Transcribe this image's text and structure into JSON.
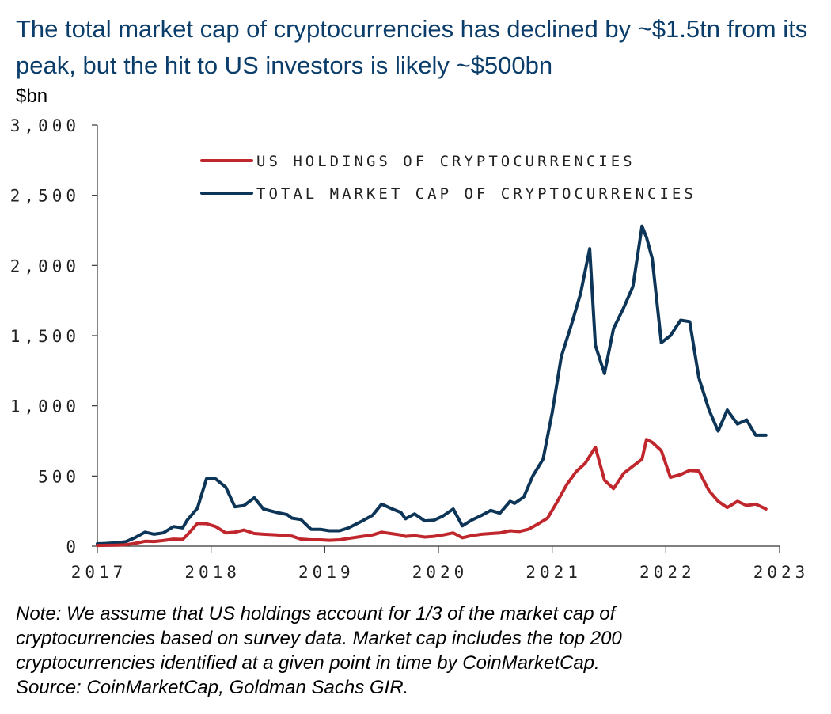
{
  "title": "The total market cap of cryptocurrencies has declined by ~$1.5tn from its peak, but the hit to US investors is likely ~$500bn",
  "unit_label": "$bn",
  "note_lines": [
    "Note: We assume that US holdings account for 1/3 of the market cap of",
    "cryptocurrencies based on survey data. Market cap includes the top 200",
    "cryptocurrencies identified at a given point in time by CoinMarketCap.",
    "Source: CoinMarketCap, Goldman Sachs GIR."
  ],
  "colors": {
    "title": "#0b3d6b",
    "total": "#0d3557",
    "us": "#c0272d",
    "axis": "#333333"
  },
  "chart_data": {
    "type": "line",
    "title": "The total market cap of cryptocurrencies has declined by ~$1.5tn from its peak, but the hit to US investors is likely ~$500bn",
    "ylabel": "$bn",
    "xlabel": "",
    "xlim": [
      2017,
      2023
    ],
    "ylim": [
      0,
      3000
    ],
    "yticks": [
      0,
      500,
      1000,
      1500,
      2000,
      2500,
      3000
    ],
    "ytick_labels": [
      "0",
      "500",
      "1,000",
      "1,500",
      "2,000",
      "2,500",
      "3,000"
    ],
    "xticks": [
      2017,
      2018,
      2019,
      2020,
      2021,
      2022,
      2023
    ],
    "xtick_labels": [
      "2017",
      "2018",
      "2019",
      "2020",
      "2021",
      "2022",
      "2023"
    ],
    "grid": false,
    "legend_position": "top-center",
    "series": [
      {
        "name": "US HOLDINGS OF CRYPTOCURRENCIES",
        "color": "#c0272d",
        "x": [
          2017.0,
          2017.17,
          2017.25,
          2017.33,
          2017.42,
          2017.5,
          2017.58,
          2017.67,
          2017.75,
          2017.79,
          2017.88,
          2017.96,
          2018.04,
          2018.13,
          2018.21,
          2018.29,
          2018.38,
          2018.46,
          2018.58,
          2018.71,
          2018.79,
          2018.88,
          2018.96,
          2019.04,
          2019.13,
          2019.21,
          2019.33,
          2019.42,
          2019.5,
          2019.58,
          2019.67,
          2019.71,
          2019.79,
          2019.88,
          2019.96,
          2020.04,
          2020.13,
          2020.21,
          2020.29,
          2020.38,
          2020.46,
          2020.54,
          2020.63,
          2020.71,
          2020.79,
          2020.88,
          2020.96,
          2021.04,
          2021.13,
          2021.21,
          2021.29,
          2021.38,
          2021.46,
          2021.54,
          2021.63,
          2021.71,
          2021.79,
          2021.83,
          2021.88,
          2021.96,
          2022.04,
          2022.13,
          2022.21,
          2022.29,
          2022.38,
          2022.46,
          2022.54,
          2022.63,
          2022.71,
          2022.79,
          2022.88
        ],
        "values": [
          5,
          7,
          10,
          20,
          35,
          33,
          40,
          50,
          48,
          80,
          162,
          160,
          140,
          95,
          100,
          115,
          90,
          85,
          80,
          72,
          50,
          45,
          45,
          42,
          45,
          55,
          70,
          80,
          100,
          90,
          80,
          70,
          75,
          65,
          70,
          80,
          95,
          60,
          75,
          85,
          90,
          95,
          110,
          105,
          120,
          160,
          200,
          310,
          440,
          530,
          590,
          705,
          470,
          410,
          520,
          570,
          620,
          760,
          740,
          680,
          490,
          510,
          540,
          535,
          395,
          320,
          275,
          320,
          290,
          300,
          265
        ]
      },
      {
        "name": "TOTAL MARKET CAP OF CRYPTOCURRENCIES",
        "color": "#0d3557",
        "x": [
          2017.0,
          2017.08,
          2017.17,
          2017.25,
          2017.33,
          2017.42,
          2017.5,
          2017.58,
          2017.67,
          2017.75,
          2017.79,
          2017.88,
          2017.96,
          2018.04,
          2018.13,
          2018.21,
          2018.29,
          2018.38,
          2018.46,
          2018.58,
          2018.67,
          2018.71,
          2018.79,
          2018.88,
          2018.96,
          2019.04,
          2019.13,
          2019.21,
          2019.33,
          2019.42,
          2019.5,
          2019.58,
          2019.67,
          2019.71,
          2019.79,
          2019.88,
          2019.96,
          2020.04,
          2020.13,
          2020.21,
          2020.29,
          2020.38,
          2020.46,
          2020.54,
          2020.63,
          2020.67,
          2020.75,
          2020.83,
          2020.92,
          2021.0,
          2021.08,
          2021.17,
          2021.25,
          2021.33,
          2021.38,
          2021.46,
          2021.54,
          2021.63,
          2021.71,
          2021.79,
          2021.83,
          2021.88,
          2021.96,
          2022.04,
          2022.13,
          2022.21,
          2022.29,
          2022.38,
          2022.46,
          2022.54,
          2022.63,
          2022.71,
          2022.79,
          2022.88
        ],
        "values": [
          17,
          20,
          25,
          32,
          60,
          100,
          85,
          95,
          140,
          130,
          185,
          270,
          480,
          480,
          420,
          280,
          290,
          345,
          265,
          240,
          225,
          200,
          190,
          120,
          120,
          110,
          110,
          130,
          180,
          220,
          300,
          270,
          240,
          195,
          230,
          180,
          185,
          215,
          265,
          145,
          185,
          220,
          255,
          235,
          320,
          305,
          350,
          500,
          620,
          950,
          1350,
          1580,
          1800,
          2120,
          1430,
          1230,
          1550,
          1700,
          1850,
          2280,
          2200,
          2050,
          1450,
          1500,
          1610,
          1600,
          1200,
          970,
          820,
          970,
          870,
          900,
          790,
          790
        ]
      }
    ]
  }
}
